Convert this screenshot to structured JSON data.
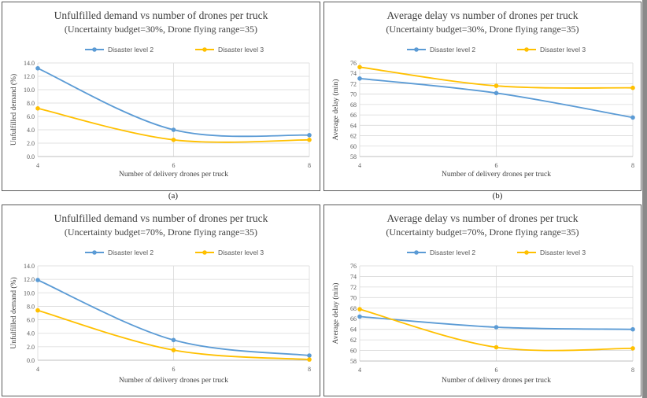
{
  "panel_labels": [
    "(a)",
    "(b)"
  ],
  "colors": {
    "series1": "#5b9bd5",
    "series2": "#ffc000",
    "grid": "#d9d9d9",
    "axis": "#bfbfbf",
    "text": "#595959"
  },
  "chart_data": [
    {
      "type": "line",
      "title": "Unfulfilled demand vs number of drones per truck",
      "subtitle": "(Uncertainty budget=30%, Drone flying range=35)",
      "xlabel": "Number of delivery drones per truck",
      "ylabel": "Unfulfilled demand (%)",
      "x": [
        4,
        6,
        8
      ],
      "x_ticks": [
        "4",
        "6",
        "8"
      ],
      "ylim": [
        0,
        14
      ],
      "y_ticks": [
        "0.0",
        "2.0",
        "4.0",
        "6.0",
        "8.0",
        "10.0",
        "12.0",
        "14.0"
      ],
      "legend": "top",
      "series": [
        {
          "name": "Disaster level 2",
          "values": [
            13.2,
            4.0,
            3.2
          ]
        },
        {
          "name": "Disaster level 3",
          "values": [
            7.2,
            2.5,
            2.5
          ]
        }
      ]
    },
    {
      "type": "line",
      "title": "Average delay vs number of drones per truck",
      "subtitle": "(Uncertainty budget=30%, Drone flying range=35)",
      "xlabel": "Number of delivery drones per truck",
      "ylabel": "Average delay (min)",
      "x": [
        4,
        6,
        8
      ],
      "x_ticks": [
        "4",
        "6",
        "8"
      ],
      "ylim": [
        58,
        76
      ],
      "y_ticks": [
        "58",
        "60",
        "62",
        "64",
        "66",
        "68",
        "70",
        "72",
        "74",
        "76"
      ],
      "legend": "top",
      "series": [
        {
          "name": "Disaster level 2",
          "values": [
            73.0,
            70.2,
            65.5
          ]
        },
        {
          "name": "Disaster level 3",
          "values": [
            75.2,
            71.6,
            71.2
          ]
        }
      ]
    },
    {
      "type": "line",
      "title": "Unfulfilled demand vs number of drones per truck",
      "subtitle": "(Uncertainty budget=70%, Drone flying range=35)",
      "xlabel": "Number of delivery drones per truck",
      "ylabel": "Unfulfilled demand (%)",
      "x": [
        4,
        6,
        8
      ],
      "x_ticks": [
        "4",
        "6",
        "8"
      ],
      "ylim": [
        0,
        14
      ],
      "y_ticks": [
        "0.0",
        "2.0",
        "4.0",
        "6.0",
        "8.0",
        "10.0",
        "12.0",
        "14.0"
      ],
      "legend": "top",
      "series": [
        {
          "name": "Disaster level 2",
          "values": [
            11.9,
            3.0,
            0.7
          ]
        },
        {
          "name": "Disaster level 3",
          "values": [
            7.4,
            1.5,
            0.1
          ]
        }
      ]
    },
    {
      "type": "line",
      "title": "Average delay vs number of drones per truck",
      "subtitle": "(Uncertainty budget=70%, Drone flying range=35)",
      "xlabel": "Number of delivery drones per truck",
      "ylabel": "Average delay (min)",
      "x": [
        4,
        6,
        8
      ],
      "x_ticks": [
        "4",
        "6",
        "8"
      ],
      "ylim": [
        58,
        76
      ],
      "y_ticks": [
        "58",
        "60",
        "62",
        "64",
        "66",
        "68",
        "70",
        "72",
        "74",
        "76"
      ],
      "legend": "top",
      "series": [
        {
          "name": "Disaster level 2",
          "values": [
            66.4,
            64.4,
            64.0
          ]
        },
        {
          "name": "Disaster level 3",
          "values": [
            67.8,
            60.6,
            60.4
          ]
        }
      ]
    }
  ]
}
